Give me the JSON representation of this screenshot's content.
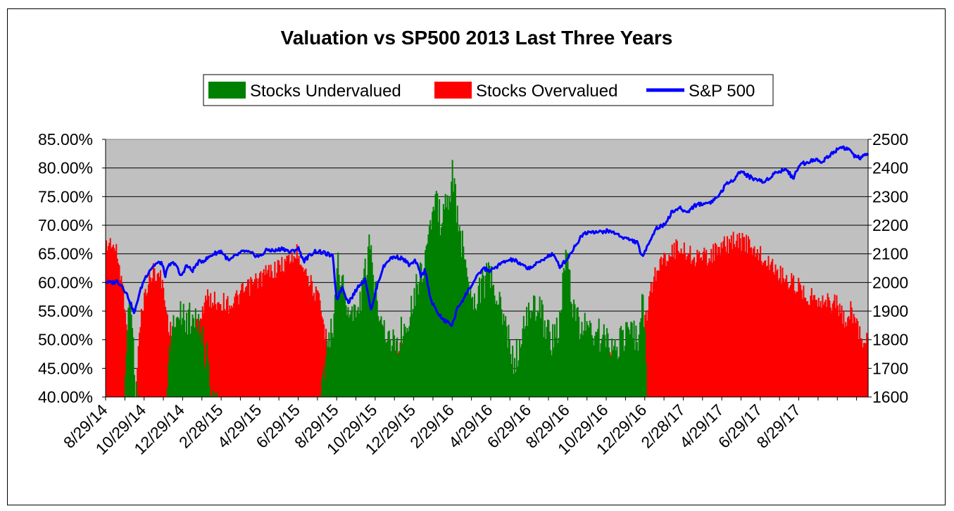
{
  "chart_data": {
    "type": "bar",
    "title": "Valuation vs SP500 2013 Last Three Years",
    "legend": {
      "placement": "top-center",
      "entries": [
        {
          "label": "Stocks Undervalued",
          "color": "#008000",
          "kind": "bar"
        },
        {
          "label": "Stocks Overvalued",
          "color": "#ff0000",
          "kind": "bar"
        },
        {
          "label": "S&P 500",
          "color": "#0000ff",
          "kind": "line"
        }
      ]
    },
    "y_left": {
      "ticks": [
        "40.00%",
        "45.00%",
        "50.00%",
        "55.00%",
        "60.00%",
        "65.00%",
        "70.00%",
        "75.00%",
        "80.00%",
        "85.00%"
      ],
      "range": [
        40,
        85
      ]
    },
    "y_right": {
      "ticks": [
        "1600",
        "1700",
        "1800",
        "1900",
        "2000",
        "2100",
        "2200",
        "2300",
        "2400",
        "2500"
      ],
      "range": [
        1600,
        2500
      ]
    },
    "x_tick_labels": [
      "8/29/14",
      "10/29/14",
      "12/29/14",
      "2/28/15",
      "4/29/15",
      "6/29/15",
      "8/29/15",
      "10/29/15",
      "12/29/15",
      "2/29/16",
      "4/29/16",
      "6/29/16",
      "8/29/16",
      "10/29/16",
      "12/29/16",
      "2/28/17",
      "4/29/17",
      "6/29/17",
      "8/29/17"
    ],
    "grid": true,
    "plot_background": "#c0c0c0",
    "series": [
      {
        "name": "Stocks Overvalued",
        "color": "#ff0000",
        "keypoints_month_value": [
          [
            0.0,
            68.0
          ],
          [
            0.3,
            69.0
          ],
          [
            0.6,
            66.0
          ],
          [
            0.9,
            60.0
          ],
          [
            1.1,
            54.0
          ],
          [
            1.3,
            44.0
          ],
          [
            1.5,
            40.0
          ],
          [
            1.7,
            52.0
          ],
          [
            1.9,
            58.0
          ],
          [
            2.2,
            62.0
          ],
          [
            2.5,
            64.0
          ],
          [
            2.9,
            62.0
          ],
          [
            3.2,
            55.0
          ],
          [
            3.5,
            52.0
          ],
          [
            3.8,
            47.0
          ],
          [
            4.1,
            48.0
          ],
          [
            4.4,
            52.0
          ],
          [
            4.8,
            55.0
          ],
          [
            5.2,
            59.0
          ],
          [
            5.8,
            58.5
          ],
          [
            6.5,
            58.0
          ],
          [
            7.1,
            60.0
          ],
          [
            7.8,
            62.0
          ],
          [
            8.4,
            63.5
          ],
          [
            9.0,
            64.5
          ],
          [
            9.6,
            66.0
          ],
          [
            10.0,
            67.0
          ],
          [
            10.6,
            62.0
          ],
          [
            11.1,
            58.0
          ],
          [
            11.5,
            51.0
          ],
          [
            12.0,
            49.0
          ],
          [
            12.2,
            45.0
          ],
          [
            12.4,
            42.0
          ],
          [
            12.8,
            41.0
          ],
          [
            13.2,
            41.5
          ],
          [
            13.7,
            43.0
          ],
          [
            14.2,
            45.0
          ],
          [
            14.7,
            47.5
          ],
          [
            15.2,
            50.0
          ],
          [
            15.6,
            51.5
          ],
          [
            15.9,
            49.0
          ],
          [
            16.2,
            46.0
          ],
          [
            16.5,
            42.0
          ],
          [
            16.7,
            40.0
          ],
          [
            17.5,
            40.0
          ],
          [
            18.2,
            40.0
          ],
          [
            18.6,
            40.5
          ],
          [
            19.0,
            41.0
          ],
          [
            19.5,
            43.0
          ],
          [
            20.0,
            45.5
          ],
          [
            20.5,
            46.5
          ],
          [
            21.0,
            44.0
          ],
          [
            21.5,
            43.0
          ],
          [
            22.0,
            44.5
          ],
          [
            22.5,
            47.0
          ],
          [
            23.0,
            45.0
          ],
          [
            23.4,
            44.0
          ],
          [
            23.8,
            46.0
          ],
          [
            24.3,
            48.0
          ],
          [
            25.0,
            48.5
          ],
          [
            25.6,
            48.0
          ],
          [
            26.2,
            48.5
          ],
          [
            26.8,
            48.0
          ],
          [
            27.3,
            48.0
          ],
          [
            27.6,
            48.0
          ],
          [
            27.9,
            52.0
          ],
          [
            28.2,
            58.0
          ],
          [
            28.5,
            63.0
          ],
          [
            28.9,
            65.5
          ],
          [
            29.3,
            67.0
          ],
          [
            29.8,
            68.0
          ],
          [
            30.4,
            66.5
          ],
          [
            31.0,
            66.0
          ],
          [
            31.6,
            67.0
          ],
          [
            32.1,
            68.0
          ],
          [
            32.6,
            69.0
          ],
          [
            33.0,
            69.0
          ],
          [
            33.5,
            68.0
          ],
          [
            34.0,
            66.5
          ],
          [
            34.5,
            65.0
          ],
          [
            35.0,
            63.5
          ],
          [
            35.5,
            62.0
          ],
          [
            36.0,
            61.0
          ],
          [
            36.5,
            59.5
          ],
          [
            37.0,
            59.0
          ],
          [
            37.5,
            58.5
          ],
          [
            38.0,
            58.0
          ],
          [
            38.4,
            55.0
          ],
          [
            38.7,
            57.0
          ],
          [
            39.0,
            54.5
          ],
          [
            39.3,
            52.0
          ],
          [
            39.6,
            52.0
          ]
        ]
      },
      {
        "name": "Stocks Undervalued",
        "color": "#008000",
        "keypoints_month_value": [
          [
            0.0,
            40.0
          ],
          [
            0.9,
            40.0
          ],
          [
            1.1,
            55.0
          ],
          [
            1.3,
            60.0
          ],
          [
            1.5,
            44.0
          ],
          [
            1.7,
            40.0
          ],
          [
            3.0,
            40.0
          ],
          [
            3.4,
            55.0
          ],
          [
            3.8,
            59.0
          ],
          [
            4.2,
            56.0
          ],
          [
            4.6,
            58.0
          ],
          [
            5.2,
            50.0
          ],
          [
            5.8,
            40.0
          ],
          [
            11.1,
            40.0
          ],
          [
            11.5,
            53.0
          ],
          [
            11.8,
            55.0
          ],
          [
            12.0,
            68.0
          ],
          [
            12.3,
            62.0
          ],
          [
            12.6,
            58.0
          ],
          [
            13.0,
            57.0
          ],
          [
            13.4,
            63.0
          ],
          [
            13.7,
            69.0
          ],
          [
            14.0,
            62.0
          ],
          [
            14.4,
            56.0
          ],
          [
            14.8,
            52.0
          ],
          [
            15.2,
            53.0
          ],
          [
            15.6,
            56.0
          ],
          [
            15.9,
            60.0
          ],
          [
            16.2,
            63.0
          ],
          [
            16.5,
            66.0
          ],
          [
            16.8,
            72.0
          ],
          [
            17.1,
            77.0
          ],
          [
            17.4,
            74.0
          ],
          [
            17.7,
            76.0
          ],
          [
            18.0,
            82.0
          ],
          [
            18.3,
            73.0
          ],
          [
            18.6,
            68.0
          ],
          [
            18.9,
            63.0
          ],
          [
            19.2,
            60.0
          ],
          [
            19.6,
            63.0
          ],
          [
            20.0,
            64.0
          ],
          [
            20.4,
            59.0
          ],
          [
            20.8,
            55.0
          ],
          [
            21.2,
            49.0
          ],
          [
            21.6,
            53.0
          ],
          [
            22.0,
            58.0
          ],
          [
            22.4,
            59.0
          ],
          [
            22.8,
            56.0
          ],
          [
            23.2,
            53.0
          ],
          [
            23.6,
            56.0
          ],
          [
            23.9,
            69.0
          ],
          [
            24.2,
            60.0
          ],
          [
            24.6,
            55.0
          ],
          [
            25.0,
            56.0
          ],
          [
            25.5,
            54.0
          ],
          [
            26.0,
            53.0
          ],
          [
            26.5,
            52.0
          ],
          [
            27.0,
            54.0
          ],
          [
            27.4,
            54.0
          ],
          [
            27.7,
            53.0
          ],
          [
            27.9,
            60.0
          ],
          [
            28.2,
            40.0
          ],
          [
            39.6,
            40.0
          ]
        ]
      },
      {
        "name": "S&P 500",
        "color": "#0000ff",
        "keypoints_month_value": [
          [
            0.0,
            2003
          ],
          [
            0.3,
            1998
          ],
          [
            0.6,
            2005
          ],
          [
            0.9,
            1985
          ],
          [
            1.2,
            1945
          ],
          [
            1.5,
            1890
          ],
          [
            1.7,
            1950
          ],
          [
            2.0,
            2010
          ],
          [
            2.3,
            2045
          ],
          [
            2.6,
            2065
          ],
          [
            2.9,
            2070
          ],
          [
            3.1,
            2025
          ],
          [
            3.3,
            2060
          ],
          [
            3.6,
            2070
          ],
          [
            3.9,
            2020
          ],
          [
            4.2,
            2060
          ],
          [
            4.5,
            2040
          ],
          [
            4.8,
            2070
          ],
          [
            5.2,
            2080
          ],
          [
            5.6,
            2100
          ],
          [
            6.0,
            2110
          ],
          [
            6.4,
            2075
          ],
          [
            6.8,
            2095
          ],
          [
            7.2,
            2110
          ],
          [
            7.6,
            2100
          ],
          [
            8.0,
            2090
          ],
          [
            8.4,
            2115
          ],
          [
            8.8,
            2110
          ],
          [
            9.2,
            2120
          ],
          [
            9.6,
            2105
          ],
          [
            10.0,
            2120
          ],
          [
            10.3,
            2075
          ],
          [
            10.6,
            2095
          ],
          [
            10.9,
            2110
          ],
          [
            11.2,
            2105
          ],
          [
            11.5,
            2100
          ],
          [
            11.8,
            2090
          ],
          [
            12.0,
            1940
          ],
          [
            12.3,
            1985
          ],
          [
            12.6,
            1930
          ],
          [
            12.9,
            1960
          ],
          [
            13.2,
            1995
          ],
          [
            13.5,
            2010
          ],
          [
            13.8,
            1900
          ],
          [
            14.1,
            1990
          ],
          [
            14.4,
            2050
          ],
          [
            14.7,
            2080
          ],
          [
            15.0,
            2090
          ],
          [
            15.4,
            2085
          ],
          [
            15.8,
            2060
          ],
          [
            16.1,
            2075
          ],
          [
            16.4,
            2020
          ],
          [
            16.6,
            2045
          ],
          [
            16.9,
            1935
          ],
          [
            17.2,
            1900
          ],
          [
            17.5,
            1870
          ],
          [
            17.8,
            1860
          ],
          [
            18.0,
            1850
          ],
          [
            18.3,
            1915
          ],
          [
            18.6,
            1945
          ],
          [
            18.9,
            1980
          ],
          [
            19.2,
            2010
          ],
          [
            19.6,
            2050
          ],
          [
            20.0,
            2040
          ],
          [
            20.4,
            2060
          ],
          [
            20.8,
            2075
          ],
          [
            21.2,
            2080
          ],
          [
            21.6,
            2060
          ],
          [
            22.0,
            2050
          ],
          [
            22.4,
            2065
          ],
          [
            22.8,
            2085
          ],
          [
            23.2,
            2100
          ],
          [
            23.6,
            2055
          ],
          [
            24.0,
            2085
          ],
          [
            24.4,
            2130
          ],
          [
            24.8,
            2170
          ],
          [
            25.2,
            2180
          ],
          [
            25.6,
            2175
          ],
          [
            26.0,
            2180
          ],
          [
            26.4,
            2175
          ],
          [
            26.8,
            2160
          ],
          [
            27.2,
            2150
          ],
          [
            27.6,
            2140
          ],
          [
            27.9,
            2085
          ],
          [
            28.2,
            2140
          ],
          [
            28.6,
            2190
          ],
          [
            29.0,
            2200
          ],
          [
            29.4,
            2245
          ],
          [
            29.8,
            2260
          ],
          [
            30.2,
            2245
          ],
          [
            30.6,
            2270
          ],
          [
            31.0,
            2275
          ],
          [
            31.4,
            2280
          ],
          [
            31.8,
            2300
          ],
          [
            32.2,
            2340
          ],
          [
            32.6,
            2360
          ],
          [
            33.0,
            2390
          ],
          [
            33.4,
            2370
          ],
          [
            33.8,
            2360
          ],
          [
            34.2,
            2350
          ],
          [
            34.6,
            2375
          ],
          [
            35.0,
            2390
          ],
          [
            35.4,
            2395
          ],
          [
            35.7,
            2360
          ],
          [
            36.0,
            2410
          ],
          [
            36.4,
            2420
          ],
          [
            36.8,
            2430
          ],
          [
            37.2,
            2420
          ],
          [
            37.5,
            2440
          ],
          [
            37.9,
            2460
          ],
          [
            38.2,
            2475
          ],
          [
            38.6,
            2465
          ],
          [
            38.9,
            2440
          ],
          [
            39.2,
            2435
          ],
          [
            39.6,
            2450
          ]
        ]
      }
    ]
  }
}
